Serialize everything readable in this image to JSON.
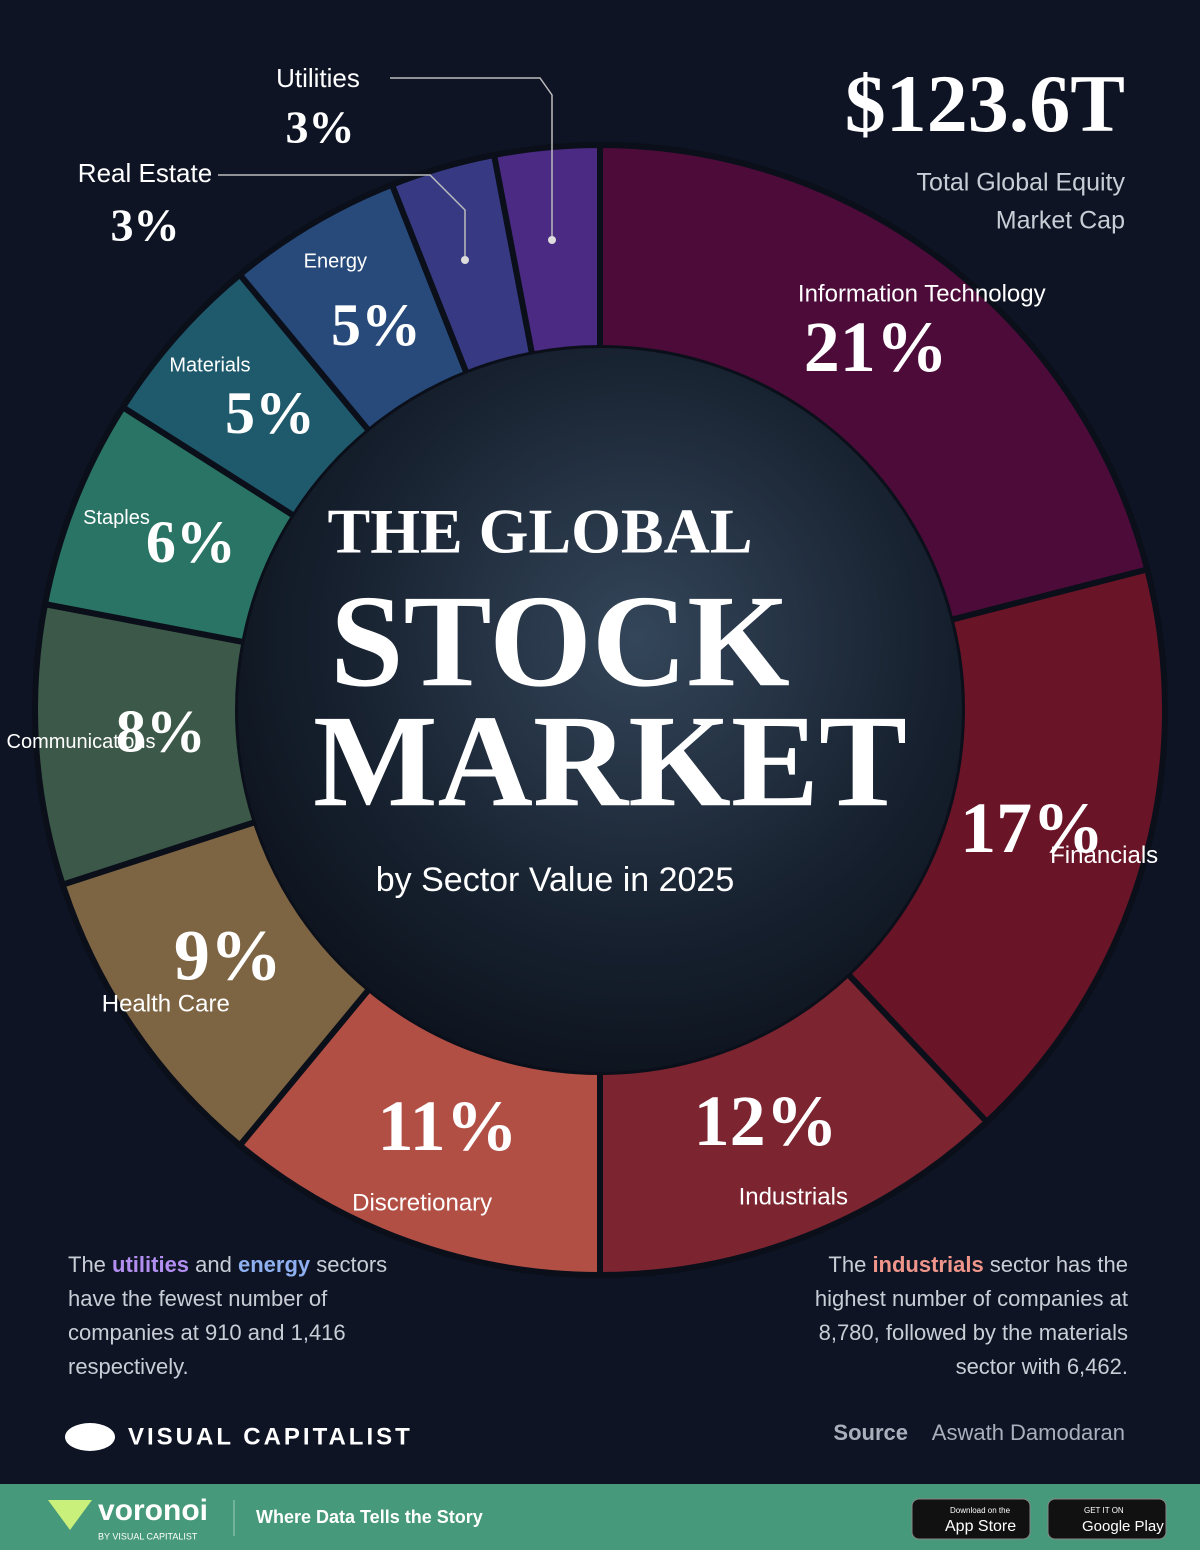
{
  "chart_data": {
    "type": "donut",
    "title_lines": [
      "THE GLOBAL",
      "STOCK",
      "MARKET"
    ],
    "subtitle": "by Sector Value in 2025",
    "total": "$123.6T",
    "total_caption": [
      "Total Global Equity",
      "Market Cap"
    ],
    "categories": [
      "Information Technology",
      "Financials",
      "Industrials",
      "Discretionary",
      "Health Care",
      "Communications",
      "Staples",
      "Materials",
      "Energy",
      "Real Estate",
      "Utilities"
    ],
    "values": [
      21,
      17,
      12,
      11,
      9,
      8,
      6,
      5,
      5,
      3,
      3
    ],
    "value_labels": [
      "21%",
      "17%",
      "12%",
      "11%",
      "9%",
      "8%",
      "6%",
      "5%",
      "5%",
      "3%",
      "3%"
    ],
    "colors": [
      "#4d0b3a",
      "#6a1427",
      "#7c2430",
      "#b24f45",
      "#7d6443",
      "#3c5848",
      "#297464",
      "#1f5a6c",
      "#274a7a",
      "#373a82",
      "#4a2a82"
    ]
  },
  "notes": {
    "left": [
      "The ",
      "utilities",
      " and ",
      "energy",
      " sectors have the fewest number of companies at 910 and 1,416 respectively."
    ],
    "right": [
      "The ",
      "industrials",
      " sector has the highest number of companies at 8,780, followed by the materials sector with 6,462."
    ]
  },
  "source": {
    "label": "Source",
    "text": "Aswath  Damodaran"
  },
  "brand": "VISUAL CAPITALIST",
  "footer": {
    "logo": "voronoi",
    "logo_sub": "BY VISUAL CAPITALIST",
    "tagline": "Where Data Tells the Story",
    "app_store": [
      "Download on the",
      "App Store"
    ],
    "google_play": [
      "GET IT ON",
      "Google Play"
    ]
  }
}
